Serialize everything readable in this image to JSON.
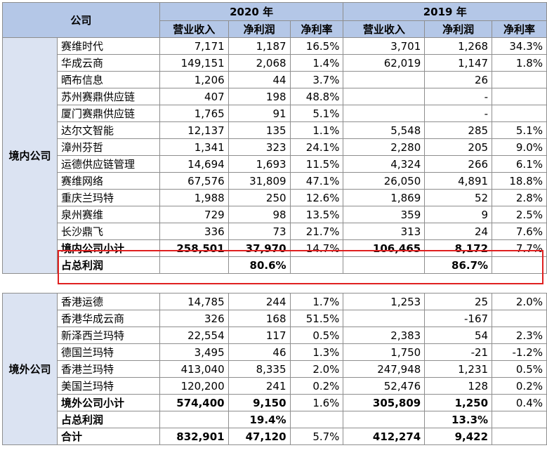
{
  "header": {
    "company": "公司",
    "year_2020": "2020 年",
    "year_2019": "2019 年",
    "revenue": "营业收入",
    "net_profit": "净利润",
    "net_margin": "净利率"
  },
  "domestic": {
    "group_label": "境内公司",
    "rows": [
      {
        "name": "赛维时代",
        "r20": "7,171",
        "p20": "1,187",
        "m20": "16.5%",
        "r19": "3,701",
        "p19": "1,268",
        "m19": "34.3%"
      },
      {
        "name": "华成云商",
        "r20": "149,151",
        "p20": "2,068",
        "m20": "1.4%",
        "r19": "62,019",
        "p19": "1,147",
        "m19": "1.8%"
      },
      {
        "name": "晒布信息",
        "r20": "1,206",
        "p20": "44",
        "m20": "3.7%",
        "r19": "",
        "p19": "26",
        "m19": ""
      },
      {
        "name": "苏州赛鼎供应链",
        "r20": "407",
        "p20": "198",
        "m20": "48.8%",
        "r19": "",
        "p19": "-",
        "m19": ""
      },
      {
        "name": "厦门赛鼎供应链",
        "r20": "1,765",
        "p20": "91",
        "m20": "5.1%",
        "r19": "",
        "p19": "-",
        "m19": ""
      },
      {
        "name": "达尔文智能",
        "r20": "12,137",
        "p20": "135",
        "m20": "1.1%",
        "r19": "5,548",
        "p19": "285",
        "m19": "5.1%"
      },
      {
        "name": "漳州芬哲",
        "r20": "1,341",
        "p20": "323",
        "m20": "24.1%",
        "r19": "2,280",
        "p19": "205",
        "m19": "9.0%"
      },
      {
        "name": "运德供应链管理",
        "r20": "14,694",
        "p20": "1,693",
        "m20": "11.5%",
        "r19": "4,324",
        "p19": "266",
        "m19": "6.1%"
      },
      {
        "name": "赛维网络",
        "r20": "67,576",
        "p20": "31,809",
        "m20": "47.1%",
        "r19": "26,050",
        "p19": "4,891",
        "m19": "18.8%"
      },
      {
        "name": "重庆兰玛特",
        "r20": "1,988",
        "p20": "250",
        "m20": "12.6%",
        "r19": "1,869",
        "p19": "52",
        "m19": "2.8%"
      },
      {
        "name": "泉州赛维",
        "r20": "729",
        "p20": "98",
        "m20": "13.5%",
        "r19": "359",
        "p19": "9",
        "m19": "2.5%"
      },
      {
        "name": "长沙鼎飞",
        "r20": "336",
        "p20": "73",
        "m20": "21.7%",
        "r19": "313",
        "p19": "24",
        "m19": "7.6%"
      }
    ],
    "subtotal": {
      "name": "境内公司小计",
      "r20": "258,501",
      "p20": "37,970",
      "m20": "14.7%",
      "r19": "106,465",
      "p19": "8,172",
      "m19": "7.7%"
    },
    "share": {
      "name": "占总利润",
      "p20": "80.6%",
      "p19": "86.7%"
    }
  },
  "overseas": {
    "group_label": "境外公司",
    "rows": [
      {
        "name": "香港运德",
        "r20": "14,785",
        "p20": "244",
        "m20": "1.7%",
        "r19": "1,253",
        "p19": "25",
        "m19": "2.0%"
      },
      {
        "name": "香港华成云商",
        "r20": "326",
        "p20": "168",
        "m20": "51.5%",
        "r19": "",
        "p19": "-167",
        "m19": ""
      },
      {
        "name": "新泽西兰玛特",
        "r20": "22,554",
        "p20": "117",
        "m20": "0.5%",
        "r19": "2,383",
        "p19": "54",
        "m19": "2.3%"
      },
      {
        "name": "德国兰玛特",
        "r20": "3,495",
        "p20": "46",
        "m20": "1.3%",
        "r19": "1,750",
        "p19": "-21",
        "m19": "-1.2%"
      },
      {
        "name": "香港兰玛特",
        "r20": "413,040",
        "p20": "8,335",
        "m20": "2.0%",
        "r19": "247,948",
        "p19": "1,231",
        "m19": "0.5%"
      },
      {
        "name": "美国兰玛特",
        "r20": "120,200",
        "p20": "241",
        "m20": "0.2%",
        "r19": "52,476",
        "p19": "128",
        "m19": "0.2%"
      }
    ],
    "subtotal": {
      "name": "境外公司小计",
      "r20": "574,400",
      "p20": "9,150",
      "m20": "1.6%",
      "r19": "305,809",
      "p19": "1,250",
      "m19": "0.4%"
    },
    "share": {
      "name": "占总利润",
      "p20": "19.4%",
      "p19": "13.3%"
    },
    "total": {
      "name": "合计",
      "r20": "832,901",
      "p20": "47,120",
      "m20": "5.7%",
      "r19": "412,274",
      "p19": "9,422",
      "m19": ""
    }
  },
  "colors": {
    "header_bg": "#b4c7e7",
    "group_bg": "#dbe3f2",
    "highlight_border": "#e02020"
  }
}
